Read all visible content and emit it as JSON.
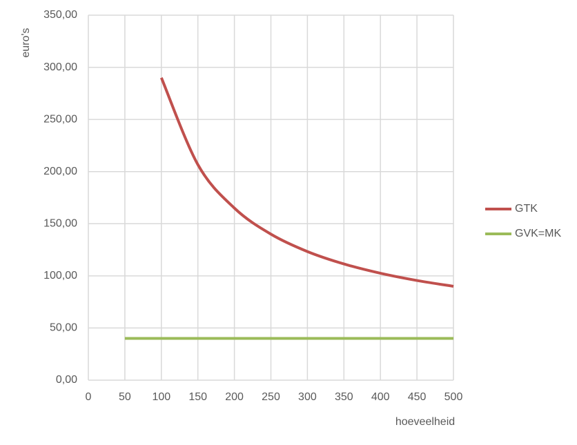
{
  "chart_data": {
    "type": "line",
    "y_label": "euro's",
    "x_label": "hoeveelheid",
    "x": [
      50,
      100,
      150,
      200,
      250,
      300,
      350,
      400,
      450,
      500
    ],
    "series": [
      {
        "name": "GTK",
        "color": "#c0504d",
        "values": [
          null,
          290,
          206.67,
          165,
          140,
          123.33,
          111.43,
          102.5,
          95.56,
          90
        ]
      },
      {
        "name": "GVK=MK",
        "color": "#9bbb59",
        "values": [
          40,
          40,
          40,
          40,
          40,
          40,
          40,
          40,
          40,
          40
        ]
      }
    ],
    "xlim": [
      0,
      500
    ],
    "xticks": [
      0,
      50,
      100,
      150,
      200,
      250,
      300,
      350,
      400,
      450,
      500
    ],
    "ylim": [
      0,
      350
    ],
    "yticks": [
      {
        "value": 0,
        "label": "0,00"
      },
      {
        "value": 50,
        "label": "50,00"
      },
      {
        "value": 100,
        "label": "100,00"
      },
      {
        "value": 150,
        "label": "150,00"
      },
      {
        "value": 200,
        "label": "200,00"
      },
      {
        "value": 250,
        "label": "250,00"
      },
      {
        "value": 300,
        "label": "300,00"
      },
      {
        "value": 350,
        "label": "350,00"
      }
    ],
    "grid": true,
    "legend": "right"
  }
}
